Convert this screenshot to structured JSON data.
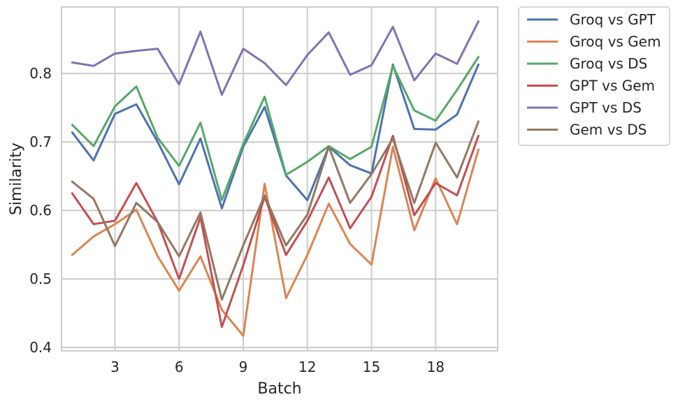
{
  "chart_data": {
    "type": "line",
    "xlabel": "Batch",
    "ylabel": "Similarity",
    "x": [
      1,
      2,
      3,
      4,
      5,
      6,
      7,
      8,
      9,
      10,
      11,
      12,
      13,
      14,
      15,
      16,
      17,
      18,
      19,
      20
    ],
    "xticks": [
      3,
      6,
      9,
      12,
      15,
      18
    ],
    "yticks": [
      0.4,
      0.5,
      0.6,
      0.7,
      0.8
    ],
    "xlim": [
      0.5,
      20.9
    ],
    "ylim": [
      0.395,
      0.897
    ],
    "grid": true,
    "legend_position": "outside-top-right",
    "series": [
      {
        "name": "Groq vs GPT",
        "color": "#4c72b0",
        "values": [
          0.714,
          0.673,
          0.741,
          0.755,
          0.7,
          0.638,
          0.705,
          0.603,
          0.693,
          0.751,
          0.651,
          0.615,
          0.693,
          0.666,
          0.654,
          0.813,
          0.719,
          0.718,
          0.74,
          0.813
        ]
      },
      {
        "name": "Groq vs Gem",
        "color": "#dd8452",
        "values": [
          0.535,
          0.562,
          0.58,
          0.601,
          0.533,
          0.483,
          0.533,
          0.455,
          0.417,
          0.639,
          0.472,
          0.535,
          0.61,
          0.551,
          0.521,
          0.693,
          0.571,
          0.647,
          0.58,
          0.689
        ]
      },
      {
        "name": "Groq vs DS",
        "color": "#55a868",
        "values": [
          0.725,
          0.694,
          0.752,
          0.781,
          0.706,
          0.665,
          0.728,
          0.615,
          0.697,
          0.766,
          0.652,
          0.671,
          0.694,
          0.675,
          0.693,
          0.811,
          0.746,
          0.731,
          0.776,
          0.824
        ]
      },
      {
        "name": "GPT vs Gem",
        "color": "#c44e52",
        "values": [
          0.625,
          0.58,
          0.585,
          0.64,
          0.583,
          0.5,
          0.59,
          0.43,
          0.52,
          0.62,
          0.535,
          0.585,
          0.648,
          0.574,
          0.62,
          0.709,
          0.593,
          0.64,
          0.622,
          0.709
        ]
      },
      {
        "name": "GPT vs DS",
        "color": "#8172b3",
        "values": [
          0.816,
          0.811,
          0.829,
          0.833,
          0.836,
          0.784,
          0.861,
          0.769,
          0.836,
          0.815,
          0.783,
          0.827,
          0.86,
          0.798,
          0.812,
          0.868,
          0.79,
          0.829,
          0.814,
          0.876
        ]
      },
      {
        "name": "Gem vs DS",
        "color": "#937860",
        "values": [
          0.642,
          0.617,
          0.548,
          0.611,
          0.583,
          0.533,
          0.597,
          0.47,
          0.549,
          0.622,
          0.549,
          0.594,
          0.693,
          0.611,
          0.653,
          0.705,
          0.611,
          0.699,
          0.648,
          0.73
        ]
      }
    ]
  }
}
